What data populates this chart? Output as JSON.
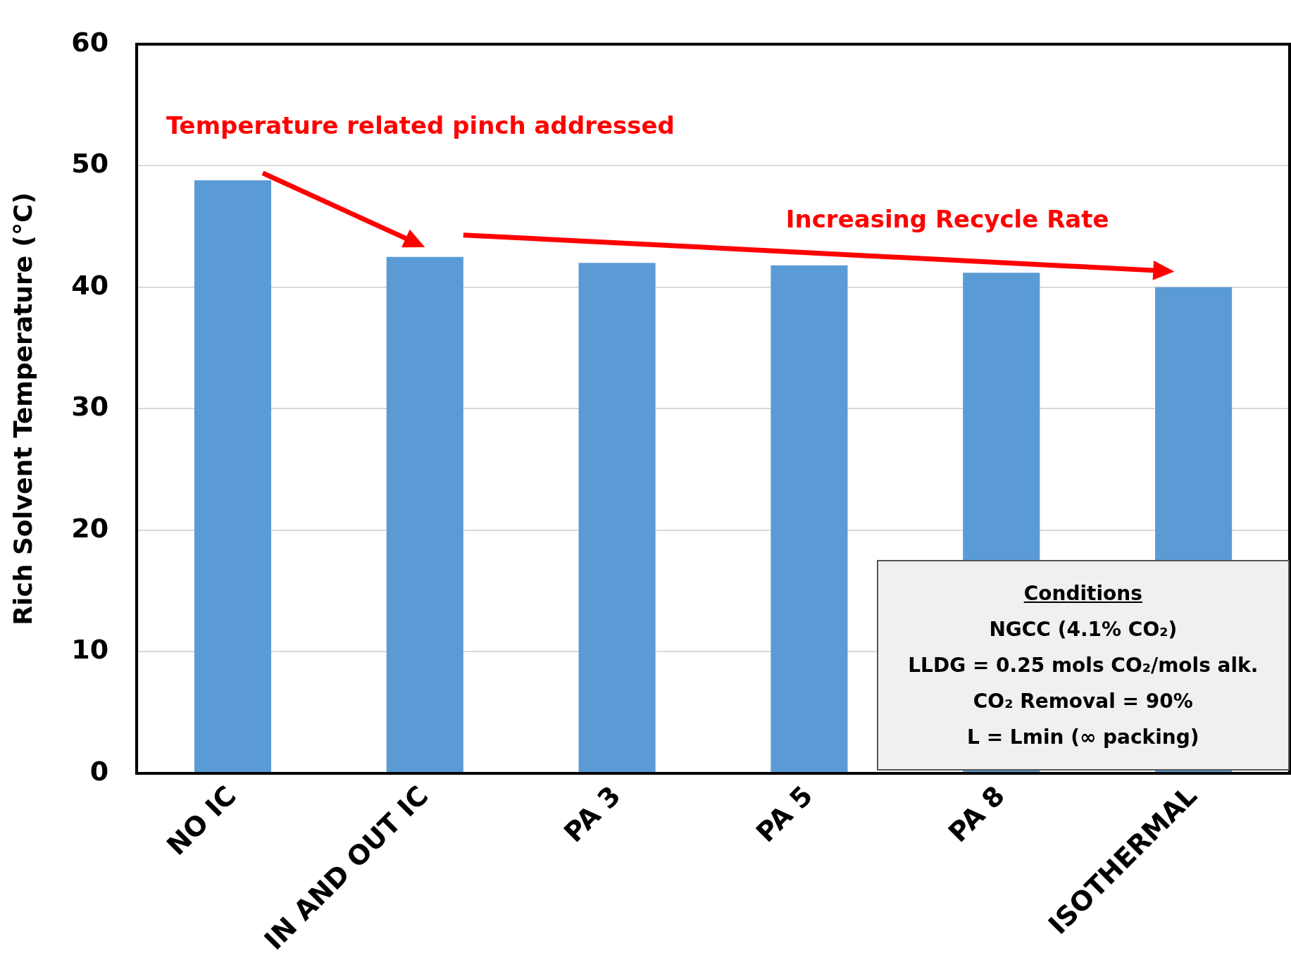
{
  "chart_data": {
    "type": "bar",
    "ylabel": "Rich Solvent Temperature (°C)",
    "categories": [
      "NO IC",
      "IN AND OUT IC",
      "PA 3",
      "PA 5",
      "PA 8",
      "ISOTHERMAL"
    ],
    "values": [
      48.8,
      42.5,
      42.0,
      41.8,
      41.2,
      40.0
    ],
    "color": "#5b9bd5",
    "ylim": [
      0,
      60
    ],
    "yticks": [
      0,
      10,
      20,
      30,
      40,
      50,
      60
    ],
    "grid": "y",
    "legend": false,
    "annotations": [
      "Temperature related pinch addressed",
      "Increasing Recycle Rate",
      "Conditions",
      "NGCC (4.1% CO₂)",
      "LLDG = 0.25 mols CO₂/mols alk.",
      "CO₂ Removal = 90%",
      "L = Lmin (∞ packing)"
    ]
  }
}
